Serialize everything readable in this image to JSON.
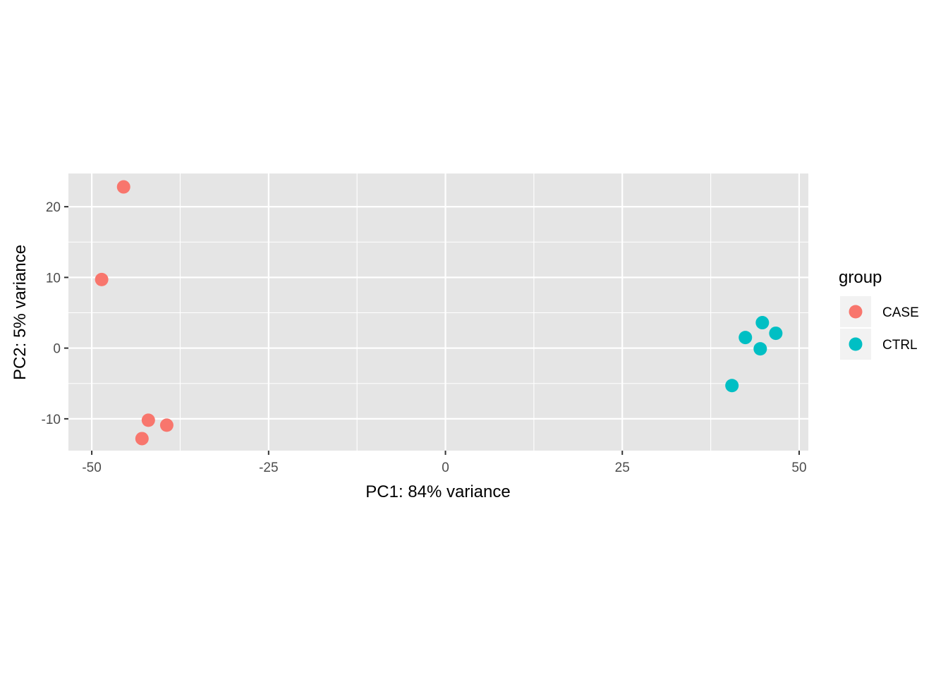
{
  "chart_data": {
    "type": "scatter",
    "xlabel": "PC1: 84% variance",
    "ylabel": "PC2: 5% variance",
    "xlim": [
      -53.3,
      51.3
    ],
    "ylim": [
      -14.5,
      24.7
    ],
    "x_ticks": [
      -50,
      -25,
      0,
      25,
      50
    ],
    "x_tick_labels": [
      "-50",
      "-25",
      "0",
      "25",
      "50"
    ],
    "y_ticks": [
      -10,
      0,
      10,
      20
    ],
    "y_tick_labels": [
      "-10",
      "0",
      "10",
      "20"
    ],
    "grid": true,
    "legend": {
      "title": "group",
      "position": "right",
      "entries": [
        {
          "label": "CASE",
          "color": "#F8766D"
        },
        {
          "label": "CTRL",
          "color": "#00BFC4"
        }
      ]
    },
    "series": [
      {
        "name": "CASE",
        "color": "#F8766D",
        "points": [
          {
            "x": -45.5,
            "y": 22.8
          },
          {
            "x": -48.6,
            "y": 9.7
          },
          {
            "x": -42.0,
            "y": -10.2
          },
          {
            "x": -39.4,
            "y": -10.9
          },
          {
            "x": -42.9,
            "y": -12.8
          }
        ]
      },
      {
        "name": "CTRL",
        "color": "#00BFC4",
        "points": [
          {
            "x": 44.8,
            "y": 3.6
          },
          {
            "x": 46.7,
            "y": 2.1
          },
          {
            "x": 42.4,
            "y": 1.5
          },
          {
            "x": 44.5,
            "y": -0.1
          },
          {
            "x": 40.5,
            "y": -5.3
          }
        ]
      }
    ]
  },
  "colors": {
    "panel_background": "#E5E5E5",
    "grid_major": "#FFFFFF",
    "tick_text": "#4D4D4D"
  }
}
